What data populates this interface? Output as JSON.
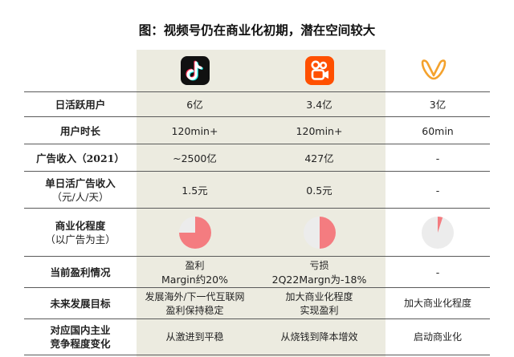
{
  "title": "图：视频号仍在商业化初期，潜在空间较大",
  "platforms": [
    {
      "icon": "tiktok-logo-icon",
      "color": "#111111"
    },
    {
      "icon": "kuaishou-logo-icon",
      "color": "#ff5000"
    },
    {
      "icon": "wechat-channels-logo-icon",
      "color": "#f4a22d"
    }
  ],
  "rows": [
    {
      "label": [
        "日活跃用户"
      ],
      "values": [
        [
          "6亿"
        ],
        [
          "3.4亿"
        ],
        [
          "3亿"
        ]
      ]
    },
    {
      "label": [
        "用户时长"
      ],
      "values": [
        [
          "120min+"
        ],
        [
          "120min+"
        ],
        [
          "60min"
        ]
      ]
    },
    {
      "label": [
        "广告收入（2021）"
      ],
      "values": [
        [
          "~2500亿"
        ],
        [
          "427亿"
        ],
        [
          "-"
        ]
      ]
    },
    {
      "label": [
        "单日活广告收入",
        "（元/人/天）"
      ],
      "values": [
        [
          "1.5元"
        ],
        [
          "0.5元"
        ],
        [
          "-"
        ]
      ]
    },
    {
      "label": [
        "商业化程度",
        "（以广告为主）"
      ],
      "values": [
        [],
        [],
        []
      ]
    },
    {
      "label": [
        "当前盈利情况"
      ],
      "values": [
        [
          "盈利",
          "Margin约20%"
        ],
        [
          "亏损",
          "2Q22Margn为-18%"
        ],
        [
          "-"
        ]
      ]
    },
    {
      "label": [
        "未来发展目标"
      ],
      "values": [
        [
          "发展海外/下一代互联网",
          "盈利保持稳定"
        ],
        [
          "加大商业化程度",
          "实现盈利"
        ],
        [
          "加大商业化程度"
        ]
      ]
    },
    {
      "label": [
        "对应国内主业",
        "竞争程度变化"
      ],
      "values": [
        [
          "从激进到平稳"
        ],
        [
          "从烧钱到降本增效"
        ],
        [
          "启动商业化"
        ]
      ]
    }
  ],
  "commercialization": [
    0.75,
    0.5,
    0.05
  ],
  "colors": {
    "pie_fill": "#f47c80",
    "pie_bg": "#ececec",
    "highlight_col": "#ecebe0",
    "rule": "#5a5a5a"
  }
}
